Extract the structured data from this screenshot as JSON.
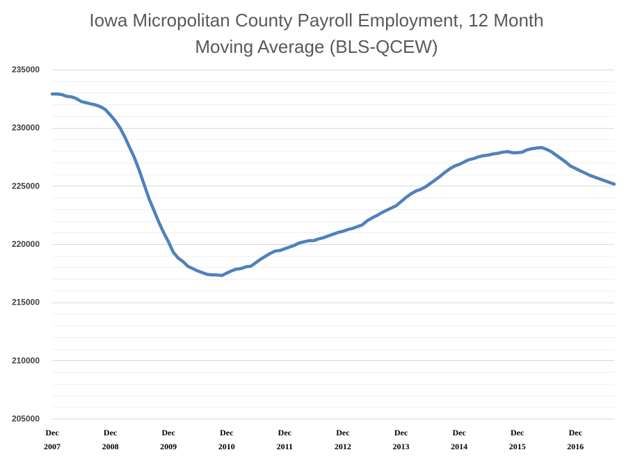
{
  "chart_data": {
    "type": "line",
    "title_lines": [
      "Iowa Micropolitan County Payroll Employment, 12 Month",
      "Moving Average (BLS-QCEW)"
    ],
    "xlabel": "",
    "ylabel": "",
    "ylim": [
      205000,
      235000
    ],
    "ytick_labels": [
      "205000",
      "210000",
      "215000",
      "220000",
      "225000",
      "230000",
      "235000"
    ],
    "ytick_values": [
      205000,
      210000,
      215000,
      220000,
      225000,
      230000,
      235000
    ],
    "xtick_labels": [
      {
        "month": "Dec",
        "year": "2007"
      },
      {
        "month": "Dec",
        "year": "2008"
      },
      {
        "month": "Dec",
        "year": "2009"
      },
      {
        "month": "Dec",
        "year": "2010"
      },
      {
        "month": "Dec",
        "year": "2011"
      },
      {
        "month": "Dec",
        "year": "2012"
      },
      {
        "month": "Dec",
        "year": "2013"
      },
      {
        "month": "Dec",
        "year": "2014"
      },
      {
        "month": "Dec",
        "year": "2015"
      },
      {
        "month": "Dec",
        "year": "2016"
      }
    ],
    "x_start": "2007-12",
    "x_end": "2017-08",
    "grid": true,
    "legend": "none",
    "series": [
      {
        "color": "#4F81BD",
        "x": [
          "2007-12",
          "2008-01",
          "2008-02",
          "2008-03",
          "2008-04",
          "2008-05",
          "2008-06",
          "2008-07",
          "2008-08",
          "2008-09",
          "2008-10",
          "2008-11",
          "2008-12",
          "2009-01",
          "2009-02",
          "2009-03",
          "2009-04",
          "2009-05",
          "2009-06",
          "2009-07",
          "2009-08",
          "2009-09",
          "2009-10",
          "2009-11",
          "2009-12",
          "2010-01",
          "2010-02",
          "2010-03",
          "2010-04",
          "2010-05",
          "2010-06",
          "2010-07",
          "2010-08",
          "2010-09",
          "2010-10",
          "2010-11",
          "2010-12",
          "2011-01",
          "2011-02",
          "2011-03",
          "2011-04",
          "2011-05",
          "2011-06",
          "2011-07",
          "2011-08",
          "2011-09",
          "2011-10",
          "2011-11",
          "2011-12",
          "2012-01",
          "2012-02",
          "2012-03",
          "2012-04",
          "2012-05",
          "2012-06",
          "2012-07",
          "2012-08",
          "2012-09",
          "2012-10",
          "2012-11",
          "2012-12",
          "2013-01",
          "2013-02",
          "2013-03",
          "2013-04",
          "2013-05",
          "2013-06",
          "2013-07",
          "2013-08",
          "2013-09",
          "2013-10",
          "2013-11",
          "2013-12",
          "2014-01",
          "2014-02",
          "2014-03",
          "2014-04",
          "2014-05",
          "2014-06",
          "2014-07",
          "2014-08",
          "2014-09",
          "2014-10",
          "2014-11",
          "2014-12",
          "2015-01",
          "2015-02",
          "2015-03",
          "2015-04",
          "2015-05",
          "2015-06",
          "2015-07",
          "2015-08",
          "2015-09",
          "2015-10",
          "2015-11",
          "2015-12",
          "2016-01",
          "2016-02",
          "2016-03",
          "2016-04",
          "2016-05",
          "2016-06",
          "2016-07",
          "2016-08",
          "2016-09",
          "2016-10",
          "2016-11",
          "2016-12",
          "2017-01",
          "2017-02",
          "2017-03",
          "2017-04",
          "2017-05",
          "2017-06",
          "2017-07",
          "2017-08"
        ],
        "values": [
          232900,
          232900,
          232850,
          232700,
          232650,
          232500,
          232250,
          232150,
          232050,
          231950,
          231800,
          231550,
          231100,
          230600,
          230000,
          229200,
          228300,
          227400,
          226300,
          225100,
          223900,
          222900,
          221900,
          221000,
          220200,
          219300,
          218800,
          218500,
          218100,
          217900,
          217700,
          217550,
          217400,
          217350,
          217350,
          217300,
          217500,
          217700,
          217850,
          217900,
          218050,
          218100,
          218400,
          218700,
          218950,
          219200,
          219400,
          219450,
          219600,
          219750,
          219900,
          220100,
          220200,
          220300,
          220300,
          220450,
          220550,
          220700,
          220850,
          221000,
          221100,
          221250,
          221350,
          221500,
          221650,
          222000,
          222250,
          222450,
          222700,
          222900,
          223100,
          223300,
          223650,
          224000,
          224300,
          224550,
          224700,
          224900,
          225200,
          225500,
          225800,
          226150,
          226450,
          226700,
          226850,
          227050,
          227250,
          227350,
          227500,
          227600,
          227650,
          227750,
          227800,
          227900,
          227950,
          227850,
          227850,
          227900,
          228100,
          228200,
          228250,
          228300,
          228150,
          227950,
          227650,
          227350,
          227050,
          226700,
          226500,
          226300,
          226100,
          225900,
          225750,
          225600,
          225450,
          225300,
          225150
        ]
      }
    ]
  }
}
